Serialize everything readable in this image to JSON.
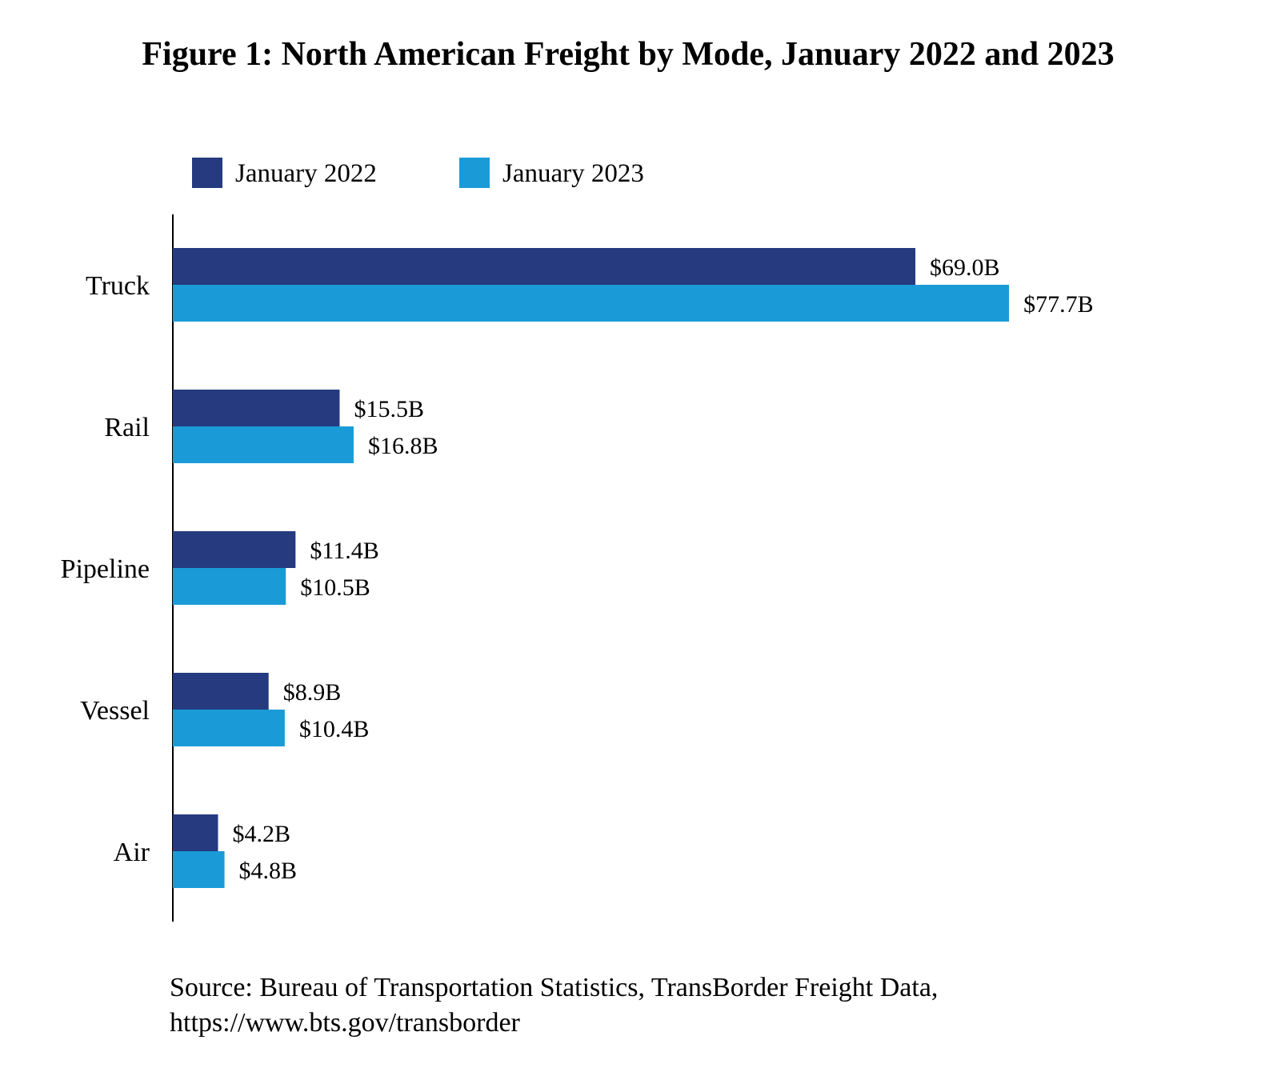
{
  "chart_data": {
    "type": "bar",
    "orientation": "horizontal",
    "title": "Figure 1: North American Freight by Mode, January 2022 and 2023",
    "categories": [
      "Truck",
      "Rail",
      "Pipeline",
      "Vessel",
      "Air"
    ],
    "series": [
      {
        "name": "January 2022",
        "color": "#253a7f",
        "values": [
          69.0,
          15.5,
          11.4,
          8.9,
          4.2
        ],
        "labels": [
          "$69.0B",
          "$15.5B",
          "$11.4B",
          "$8.9B",
          "$4.2B"
        ]
      },
      {
        "name": "January 2023",
        "color": "#1a9bd7",
        "values": [
          77.7,
          16.8,
          10.5,
          10.4,
          4.8
        ],
        "labels": [
          "$77.7B",
          "$16.8B",
          "$10.5B",
          "$10.4B",
          "$4.8B"
        ]
      }
    ],
    "unit": "billions USD",
    "xlabel": "",
    "ylabel": "",
    "grid": false,
    "legend": "top"
  },
  "source": {
    "line1": "Source: Bureau of Transportation Statistics, TransBorder Freight Data,",
    "line2": "https://www.bts.gov/transborder"
  }
}
